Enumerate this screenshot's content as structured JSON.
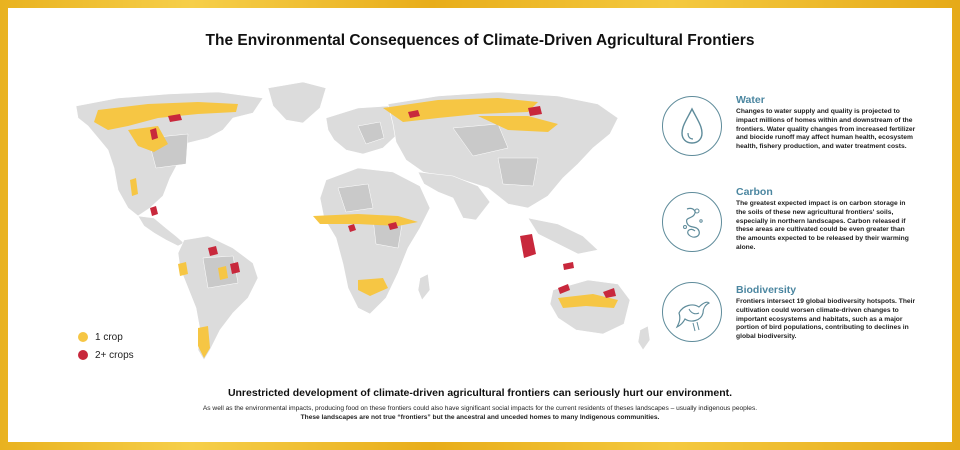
{
  "title": "The Environmental Consequences of Climate-Driven Agricultural Frontiers",
  "legend": [
    {
      "label": "1 crop",
      "color": "#f6c644"
    },
    {
      "label": "2+ crops",
      "color": "#c8283c"
    }
  ],
  "colors": {
    "land": "#dcdcdc",
    "land_dark": "#c9c9c9",
    "one_crop": "#f6c644",
    "two_crops": "#c8283c",
    "accent": "#4b86a0",
    "frame": "#e9b21f"
  },
  "impacts": [
    {
      "title": "Water",
      "icon": "water-drop-icon",
      "text": "Changes to water supply and quality is projected to impact millions of homes within and downstream of the frontiers. Water quality changes from increased fertilizer and biocide runoff may affect human health, ecosystem health, fishery production, and water treatment costs."
    },
    {
      "title": "Carbon",
      "icon": "carbon-swirl-icon",
      "text": "The greatest expected impact is on carbon storage in the soils of these new agricultural frontiers' soils, especially in northern landscapes. Carbon released if these areas are cultivated could be even greater than the amounts expected to be released by their warming alone."
    },
    {
      "title": "Biodiversity",
      "icon": "bird-icon",
      "text": "Frontiers intersect 19 global biodiversity hotspots. Their cultivation could worsen climate-driven changes to important ecosystems and habitats, such as a major portion of bird populations, contributing to declines in global biodiversity."
    }
  ],
  "headline": "Unrestricted development of climate-driven agricultural frontiers can seriously hurt our environment.",
  "note_line1": "As well as the environmental impacts, producing food on these frontiers could also have significant social impacts for the current residents of theses landscapes – usually indigenous peoples.",
  "note_line2": "These landscapes are not true “frontiers” but the ancestral and unceded homes to many Indigenous communities."
}
